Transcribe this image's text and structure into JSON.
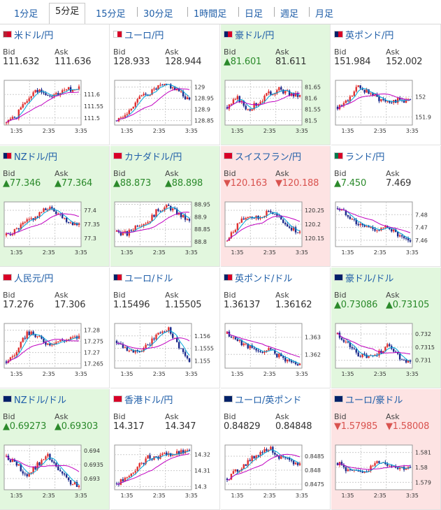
{
  "tabs": [
    {
      "label": "1分足",
      "active": false
    },
    {
      "label": "5分足",
      "active": true
    },
    {
      "label": "15分足",
      "active": false
    },
    {
      "label": "30分足",
      "active": false
    },
    {
      "label": "1時間足",
      "active": false
    },
    {
      "label": "日足",
      "active": false
    },
    {
      "label": "週足",
      "active": false
    },
    {
      "label": "月足",
      "active": false
    }
  ],
  "labels": {
    "bid": "Bid",
    "ask": "Ask"
  },
  "xticks": [
    "1:35",
    "2:35",
    "3:35"
  ],
  "cards": [
    {
      "pair": "米ドル/円",
      "flag": [
        "#b22234",
        "#d80027"
      ],
      "state": "neutral",
      "bid": "111.632",
      "ask": "111.636",
      "bid_dir": "",
      "ask_dir": "",
      "y": [
        "111.6",
        "111.55",
        "111.5"
      ],
      "ylim": [
        111.47,
        111.66
      ],
      "plot_bg": "#fff",
      "ma_color": "#00a5d8",
      "ma_color2": "#c000c0",
      "seed": 1,
      "trend": [
        111.48,
        111.51,
        111.58,
        111.62,
        111.59,
        111.6,
        111.62,
        111.63
      ]
    },
    {
      "pair": "ユーロ/円",
      "flag": [
        "#fff",
        "#d80027"
      ],
      "state": "neutral",
      "bid": "128.933",
      "ask": "128.944",
      "bid_dir": "",
      "ask_dir": "",
      "y": [
        "129",
        "128.95",
        "128.9",
        "128.85"
      ],
      "ylim": [
        128.83,
        129.03
      ],
      "plot_bg": "#fff",
      "ma_color": "#00a5d8",
      "ma_color2": "#c000c0",
      "seed": 2,
      "trend": [
        128.85,
        128.88,
        128.95,
        128.97,
        129.0,
        129.01,
        128.98,
        128.94
      ]
    },
    {
      "pair": "豪ドル/円",
      "flag": [
        "#012169",
        "#d80027"
      ],
      "state": "up",
      "bid": "▲81.601",
      "ask": "81.611",
      "bid_dir": "up",
      "ask_dir": "",
      "y": [
        "81.65",
        "81.6",
        "81.55",
        "81.5"
      ],
      "ylim": [
        81.48,
        81.68
      ],
      "plot_bg": "#fff",
      "ma_color": "#00a5d8",
      "ma_color2": "#c000c0",
      "seed": 3,
      "trend": [
        81.56,
        81.6,
        81.55,
        81.58,
        81.62,
        81.64,
        81.62,
        81.61
      ]
    },
    {
      "pair": "英ポンド/円",
      "flag": [
        "#012169",
        "#d80027"
      ],
      "state": "neutral",
      "bid": "151.984",
      "ask": "152.002",
      "bid_dir": "",
      "ask_dir": "",
      "y": [
        "152",
        "151.9"
      ],
      "ylim": [
        151.86,
        152.08
      ],
      "plot_bg": "#fff",
      "ma_color": "#00a5d8",
      "ma_color2": "#c000c0",
      "seed": 4,
      "trend": [
        151.95,
        151.98,
        152.05,
        152.02,
        151.99,
        151.98,
        151.98,
        151.98
      ]
    },
    {
      "pair": "NZドル/円",
      "flag": [
        "#012169",
        "#d80027"
      ],
      "state": "up",
      "bid": "▲77.346",
      "ask": "▲77.364",
      "bid_dir": "up",
      "ask_dir": "up",
      "y": [
        "77.4",
        "77.35",
        "77.3"
      ],
      "ylim": [
        77.27,
        77.43
      ],
      "plot_bg": "#fff",
      "ma_color": "#00a5d8",
      "ma_color2": "#c000c0",
      "seed": 5,
      "trend": [
        77.31,
        77.33,
        77.36,
        77.38,
        77.41,
        77.39,
        77.36,
        77.35
      ]
    },
    {
      "pair": "カナダドル/円",
      "flag": [
        "#d80027",
        "#d80027"
      ],
      "state": "up",
      "bid": "▲88.873",
      "ask": "▲88.898",
      "bid_dir": "up",
      "ask_dir": "up",
      "y": [
        "88.95",
        "88.9",
        "88.85",
        "88.8"
      ],
      "ylim": [
        88.78,
        88.96
      ],
      "plot_bg": "#fff",
      "ma_color": "#00a5d8",
      "ma_color2": "#c000c0",
      "seed": 6,
      "trend": [
        88.84,
        88.83,
        88.87,
        88.88,
        88.93,
        88.94,
        88.91,
        88.88
      ]
    },
    {
      "pair": "スイスフラン/円",
      "flag": [
        "#d80027",
        "#d80027"
      ],
      "state": "down",
      "bid": "▼120.163",
      "ask": "▼120.188",
      "bid_dir": "dn",
      "ask_dir": "dn",
      "y": [
        "120.25",
        "120.2",
        "120.15"
      ],
      "ylim": [
        120.12,
        120.28
      ],
      "plot_bg": "#fff",
      "ma_color": "#00a5d8",
      "ma_color2": "#c000c0",
      "seed": 7,
      "trend": [
        120.14,
        120.2,
        120.23,
        120.22,
        120.25,
        120.22,
        120.19,
        120.17
      ]
    },
    {
      "pair": "ランド/円",
      "flag": [
        "#007a4d",
        "#d80027"
      ],
      "state": "neutral",
      "bid": "▲7.450",
      "ask": "7.469",
      "bid_dir": "up",
      "ask_dir": "",
      "y": [
        "7.48",
        "7.47",
        "7.46"
      ],
      "ylim": [
        7.455,
        7.49
      ],
      "plot_bg": "#fff",
      "ma_color": "#00a5d8",
      "ma_color2": "#c000c0",
      "seed": 8,
      "trend": [
        7.485,
        7.48,
        7.472,
        7.47,
        7.468,
        7.47,
        7.462,
        7.458
      ]
    },
    {
      "pair": "人民元/円",
      "flag": [
        "#d80027",
        "#d80027"
      ],
      "state": "neutral",
      "bid": "17.276",
      "ask": "17.306",
      "bid_dir": "",
      "ask_dir": "",
      "y": [
        "17.28",
        "17.275",
        "17.27",
        "17.265"
      ],
      "ylim": [
        17.263,
        17.283
      ],
      "plot_bg": "#fff",
      "ma_color": "#00a5d8",
      "ma_color2": "#c000c0",
      "seed": 9,
      "trend": [
        17.266,
        17.27,
        17.279,
        17.277,
        17.274,
        17.275,
        17.276,
        17.277
      ]
    },
    {
      "pair": "ユーロ/ドル",
      "flag": [
        "#012169",
        "#d80027"
      ],
      "state": "neutral",
      "bid": "1.15496",
      "ask": "1.15505",
      "bid_dir": "",
      "ask_dir": "",
      "y": [
        "1.156",
        "1.1555",
        "1.155"
      ],
      "ylim": [
        1.1547,
        1.1565
      ],
      "plot_bg": "#fff",
      "ma_color": "#00a5d8",
      "ma_color2": "#c000c0",
      "seed": 10,
      "trend": [
        1.1558,
        1.1555,
        1.1553,
        1.1556,
        1.1561,
        1.1563,
        1.1556,
        1.1549
      ]
    },
    {
      "pair": "英ポンド/ドル",
      "flag": [
        "#012169",
        "#d80027"
      ],
      "state": "neutral",
      "bid": "1.36137",
      "ask": "1.36162",
      "bid_dir": "",
      "ask_dir": "",
      "y": [
        "1.363",
        "1.362"
      ],
      "ylim": [
        1.3612,
        1.3638
      ],
      "plot_bg": "#fff",
      "ma_color": "#00a5d8",
      "ma_color2": "#c000c0",
      "seed": 11,
      "trend": [
        1.3632,
        1.3628,
        1.3625,
        1.3621,
        1.3623,
        1.3619,
        1.3616,
        1.3614
      ]
    },
    {
      "pair": "豪ドル/ドル",
      "flag": [
        "#012169",
        "#012169"
      ],
      "state": "up",
      "bid": "▲0.73086",
      "ask": "▲0.73105",
      "bid_dir": "up",
      "ask_dir": "up",
      "y": [
        "0.732",
        "0.7315",
        "0.731"
      ],
      "ylim": [
        0.7307,
        0.7324
      ],
      "plot_bg": "#fff",
      "ma_color": "#00a5d8",
      "ma_color2": "#c000c0",
      "seed": 12,
      "trend": [
        0.732,
        0.7316,
        0.7312,
        0.7311,
        0.7313,
        0.7316,
        0.7311,
        0.7309
      ]
    },
    {
      "pair": "NZドル/ドル",
      "flag": [
        "#012169",
        "#012169"
      ],
      "state": "up",
      "bid": "▲0.69273",
      "ask": "▲0.69303",
      "bid_dir": "up",
      "ask_dir": "up",
      "y": [
        "0.694",
        "0.6935",
        "0.693"
      ],
      "ylim": [
        0.6926,
        0.6942
      ],
      "plot_bg": "#fff",
      "ma_color": "#00a5d8",
      "ma_color2": "#c000c0",
      "seed": 13,
      "trend": [
        0.6938,
        0.6935,
        0.6931,
        0.6935,
        0.6938,
        0.6933,
        0.6929,
        0.6927
      ]
    },
    {
      "pair": "香港ドル/円",
      "flag": [
        "#d80027",
        "#d80027"
      ],
      "state": "neutral",
      "bid": "14.317",
      "ask": "14.347",
      "bid_dir": "",
      "ask_dir": "",
      "y": [
        "14.32",
        "14.31",
        "14.3"
      ],
      "ylim": [
        14.298,
        14.326
      ],
      "plot_bg": "#fff",
      "ma_color": "#00a5d8",
      "ma_color2": "#c000c0",
      "seed": 14,
      "trend": [
        14.302,
        14.305,
        14.312,
        14.318,
        14.319,
        14.32,
        14.321,
        14.322
      ]
    },
    {
      "pair": "ユーロ/英ポンド",
      "flag": [
        "#012169",
        "#012169"
      ],
      "state": "neutral",
      "bid": "0.84829",
      "ask": "0.84848",
      "bid_dir": "",
      "ask_dir": "",
      "y": [
        "0.8485",
        "0.848",
        "0.8475"
      ],
      "ylim": [
        0.8473,
        0.8489
      ],
      "plot_bg": "#fff",
      "ma_color": "#00a5d8",
      "ma_color2": "#c000c0",
      "seed": 15,
      "trend": [
        0.8477,
        0.848,
        0.8483,
        0.8486,
        0.8488,
        0.8485,
        0.8483,
        0.8482
      ]
    },
    {
      "pair": "ユーロ/豪ドル",
      "flag": [
        "#012169",
        "#012169"
      ],
      "state": "down",
      "bid": "▼1.57985",
      "ask": "▼1.58008",
      "bid_dir": "dn",
      "ask_dir": "dn",
      "y": [
        "1.581",
        "1.58",
        "1.579"
      ],
      "ylim": [
        1.5785,
        1.5815
      ],
      "plot_bg": "#fff",
      "ma_color": "#00a5d8",
      "ma_color2": "#c000c0",
      "seed": 16,
      "trend": [
        1.5803,
        1.5798,
        1.5796,
        1.5799,
        1.5804,
        1.5802,
        1.58,
        1.5799
      ]
    }
  ]
}
